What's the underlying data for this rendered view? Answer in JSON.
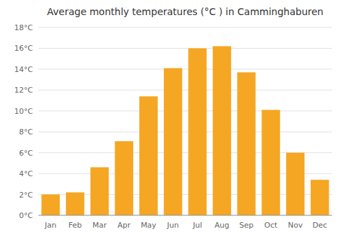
{
  "chart_data": {
    "type": "bar",
    "title": "Average monthly temperatures (°C ) in Camminghaburen",
    "categories": [
      "Jan",
      "Feb",
      "Mar",
      "Apr",
      "May",
      "Jun",
      "Jul",
      "Aug",
      "Sep",
      "Oct",
      "Nov",
      "Dec"
    ],
    "values": [
      2.0,
      2.2,
      4.6,
      7.1,
      11.4,
      14.1,
      16.0,
      16.2,
      13.7,
      10.1,
      6.0,
      3.4
    ],
    "color": "#F5A623",
    "ylim": [
      0,
      18
    ],
    "yticks": [
      {
        "value": 0,
        "label": "0°C"
      },
      {
        "value": 2,
        "label": "2°C"
      },
      {
        "value": 4,
        "label": "4°C"
      },
      {
        "value": 6,
        "label": "6°C"
      },
      {
        "value": 8,
        "label": "8°C"
      },
      {
        "value": 10,
        "label": "10°C"
      },
      {
        "value": 12,
        "label": "12°C"
      },
      {
        "value": 14,
        "label": "14°C"
      },
      {
        "value": 16,
        "label": "16°C"
      },
      {
        "value": 18,
        "label": "18°C"
      }
    ],
    "grid": true
  }
}
